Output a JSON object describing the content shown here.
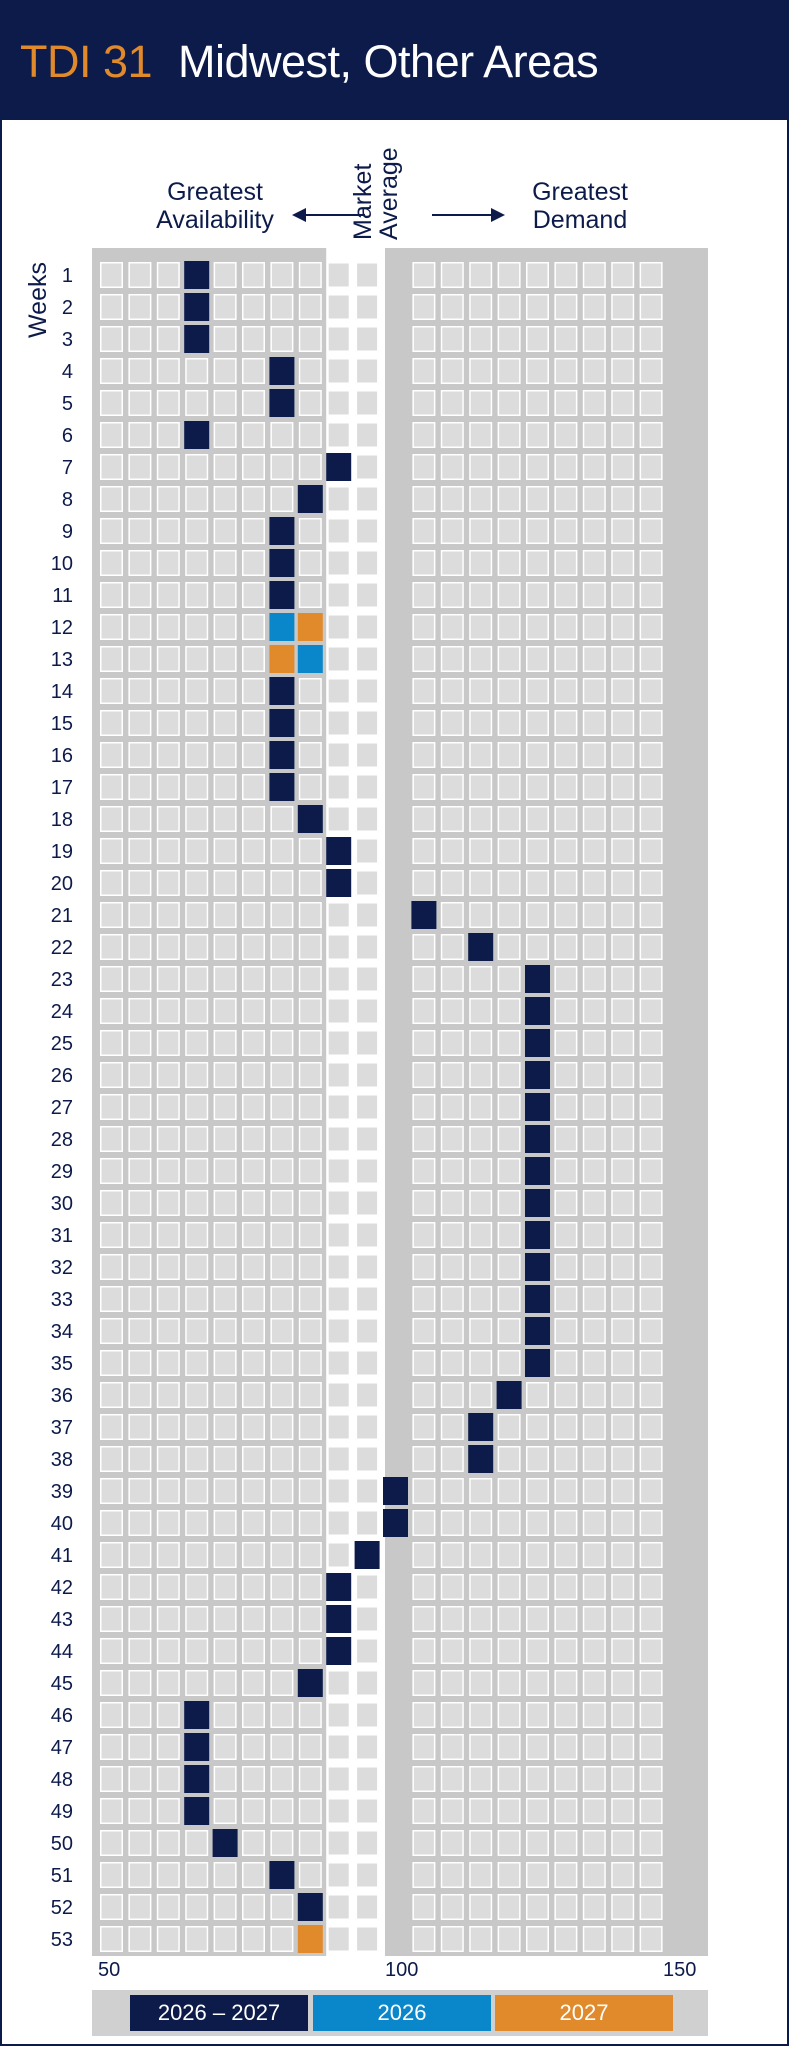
{
  "header": {
    "code": "TDI 31",
    "title": "Midwest, Other Areas"
  },
  "labels": {
    "left_heading": "Greatest\nAvailability",
    "middle_heading": "Market\nAverage",
    "right_heading": "Greatest\nDemand",
    "weeks_axis": "Weeks"
  },
  "colors": {
    "navy": "#0d1b4a",
    "blue": "#0a86cb",
    "orange": "#e08a2b",
    "cell": "#dcdcdc",
    "frame": "#c8c8c8"
  },
  "legend": [
    {
      "label": "2026 – 2027",
      "color": "#0d1b4a"
    },
    {
      "label": "2026",
      "color": "#0a86cb"
    },
    {
      "label": "2027",
      "color": "#e08a2b"
    }
  ],
  "chart_data": {
    "type": "heatmap",
    "xlabel": "",
    "ylabel": "Weeks",
    "xlim": [
      50,
      150
    ],
    "x_ticks": [
      50,
      100,
      150
    ],
    "y_ticks": [
      1,
      2,
      3,
      4,
      5,
      6,
      7,
      8,
      9,
      10,
      11,
      12,
      13,
      14,
      15,
      16,
      17,
      18,
      19,
      20,
      21,
      22,
      23,
      24,
      25,
      26,
      27,
      28,
      29,
      30,
      31,
      32,
      33,
      34,
      35,
      36,
      37,
      38,
      39,
      40,
      41,
      42,
      43,
      44,
      45,
      46,
      47,
      48,
      49,
      50,
      51,
      52,
      53
    ],
    "series": [
      {
        "name": "2026 – 2027",
        "points": [
          [
            1,
            65
          ],
          [
            2,
            65
          ],
          [
            3,
            65
          ],
          [
            4,
            80
          ],
          [
            5,
            80
          ],
          [
            6,
            65
          ],
          [
            7,
            90
          ],
          [
            8,
            85
          ],
          [
            9,
            80
          ],
          [
            10,
            80
          ],
          [
            11,
            80
          ],
          [
            14,
            80
          ],
          [
            15,
            80
          ],
          [
            16,
            80
          ],
          [
            17,
            80
          ],
          [
            18,
            85
          ],
          [
            19,
            90
          ],
          [
            20,
            90
          ],
          [
            21,
            105
          ],
          [
            22,
            115
          ],
          [
            23,
            125
          ],
          [
            24,
            125
          ],
          [
            25,
            125
          ],
          [
            26,
            125
          ],
          [
            27,
            125
          ],
          [
            28,
            125
          ],
          [
            29,
            125
          ],
          [
            30,
            125
          ],
          [
            31,
            125
          ],
          [
            32,
            125
          ],
          [
            33,
            125
          ],
          [
            34,
            125
          ],
          [
            35,
            125
          ],
          [
            36,
            120
          ],
          [
            37,
            115
          ],
          [
            38,
            115
          ],
          [
            39,
            100
          ],
          [
            40,
            100
          ],
          [
            41,
            95
          ],
          [
            42,
            90
          ],
          [
            43,
            90
          ],
          [
            44,
            90
          ],
          [
            45,
            85
          ],
          [
            46,
            65
          ],
          [
            47,
            65
          ],
          [
            48,
            65
          ],
          [
            49,
            65
          ],
          [
            50,
            70
          ],
          [
            51,
            80
          ],
          [
            52,
            85
          ]
        ]
      },
      {
        "name": "2026",
        "points": [
          [
            12,
            80
          ],
          [
            13,
            85
          ]
        ]
      },
      {
        "name": "2027",
        "points": [
          [
            12,
            85
          ],
          [
            13,
            80
          ],
          [
            53,
            85
          ]
        ]
      }
    ]
  }
}
